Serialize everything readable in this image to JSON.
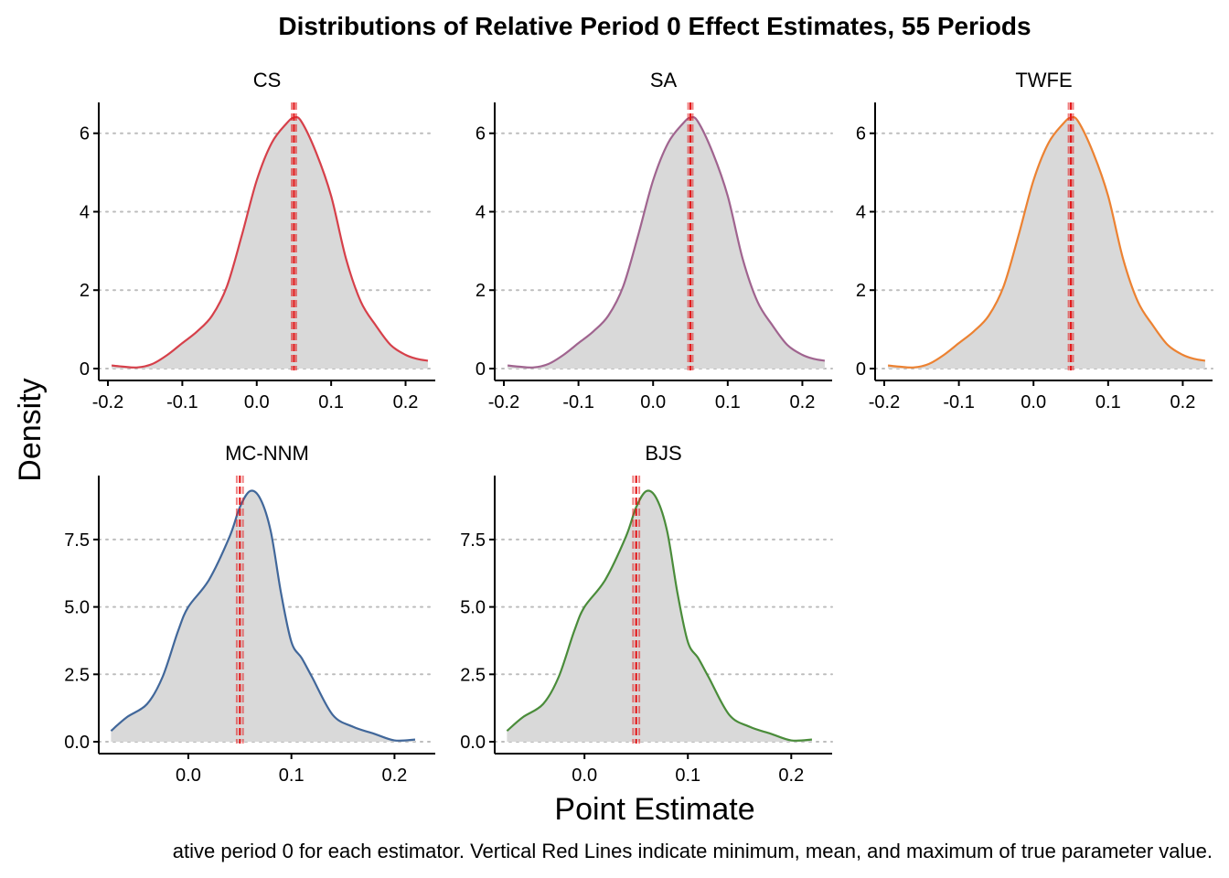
{
  "title": "Distributions of Relative Period 0 Effect Estimates, 55 Periods",
  "xlabel": "Point Estimate",
  "ylabel": "Density",
  "caption": "ative period 0 for each estimator. Vertical Red Lines indicate minimum, mean, and maximum of true parameter value.",
  "colors": {
    "fill": "#d9d9d9",
    "grid": "#bdbdbd",
    "true_line": "#e31a1c"
  },
  "chart_data": [
    {
      "type": "area",
      "panel": "CS",
      "color": "#d6404a",
      "xlim": [
        -0.2,
        0.235
      ],
      "ylim": [
        0,
        6.6
      ],
      "xticks": [
        -0.2,
        -0.1,
        0.0,
        0.1,
        0.2
      ],
      "xtick_labels": [
        "-0.2",
        "-0.1",
        "0.0",
        "0.1",
        "0.2"
      ],
      "yticks": [
        0,
        2,
        4,
        6
      ],
      "ytick_labels": [
        "0",
        "2",
        "4",
        "6"
      ],
      "true_value_lines": [
        0.047,
        0.05,
        0.053
      ],
      "x": [
        -0.195,
        -0.18,
        -0.16,
        -0.14,
        -0.12,
        -0.1,
        -0.08,
        -0.06,
        -0.04,
        -0.02,
        0.0,
        0.02,
        0.04,
        0.05,
        0.06,
        0.08,
        0.1,
        0.12,
        0.14,
        0.16,
        0.18,
        0.2,
        0.215,
        0.23
      ],
      "y": [
        0.08,
        0.05,
        0.03,
        0.12,
        0.35,
        0.65,
        0.95,
        1.35,
        2.1,
        3.4,
        4.8,
        5.75,
        6.25,
        6.4,
        6.3,
        5.5,
        4.4,
        2.8,
        1.7,
        1.1,
        0.6,
        0.35,
        0.25,
        0.2
      ]
    },
    {
      "type": "area",
      "panel": "SA",
      "color": "#a0648f",
      "xlim": [
        -0.2,
        0.235
      ],
      "ylim": [
        0,
        6.6
      ],
      "xticks": [
        -0.2,
        -0.1,
        0.0,
        0.1,
        0.2
      ],
      "xtick_labels": [
        "-0.2",
        "-0.1",
        "0.0",
        "0.1",
        "0.2"
      ],
      "yticks": [
        0,
        2,
        4,
        6
      ],
      "ytick_labels": [
        "0",
        "2",
        "4",
        "6"
      ],
      "true_value_lines": [
        0.047,
        0.05,
        0.053
      ],
      "x": [
        -0.195,
        -0.18,
        -0.16,
        -0.14,
        -0.12,
        -0.1,
        -0.08,
        -0.06,
        -0.04,
        -0.02,
        0.0,
        0.02,
        0.04,
        0.05,
        0.06,
        0.08,
        0.1,
        0.12,
        0.14,
        0.16,
        0.18,
        0.2,
        0.215,
        0.23
      ],
      "y": [
        0.08,
        0.05,
        0.03,
        0.12,
        0.35,
        0.65,
        0.95,
        1.35,
        2.1,
        3.4,
        4.8,
        5.75,
        6.25,
        6.4,
        6.3,
        5.5,
        4.4,
        2.8,
        1.7,
        1.1,
        0.6,
        0.35,
        0.25,
        0.2
      ]
    },
    {
      "type": "area",
      "panel": "TWFE",
      "color": "#ec8232",
      "xlim": [
        -0.2,
        0.235
      ],
      "ylim": [
        0,
        6.6
      ],
      "xticks": [
        -0.2,
        -0.1,
        0.0,
        0.1,
        0.2
      ],
      "xtick_labels": [
        "-0.2",
        "-0.1",
        "0.0",
        "0.1",
        "0.2"
      ],
      "yticks": [
        0,
        2,
        4,
        6
      ],
      "ytick_labels": [
        "0",
        "2",
        "4",
        "6"
      ],
      "true_value_lines": [
        0.047,
        0.05,
        0.053
      ],
      "x": [
        -0.195,
        -0.18,
        -0.16,
        -0.14,
        -0.12,
        -0.1,
        -0.08,
        -0.06,
        -0.04,
        -0.02,
        0.0,
        0.02,
        0.04,
        0.05,
        0.06,
        0.08,
        0.1,
        0.12,
        0.14,
        0.16,
        0.18,
        0.2,
        0.215,
        0.23
      ],
      "y": [
        0.08,
        0.05,
        0.03,
        0.12,
        0.35,
        0.65,
        0.95,
        1.35,
        2.1,
        3.4,
        4.8,
        5.75,
        6.25,
        6.4,
        6.3,
        5.5,
        4.4,
        2.8,
        1.7,
        1.1,
        0.6,
        0.35,
        0.25,
        0.2
      ]
    },
    {
      "type": "area",
      "panel": "MC-NNM",
      "color": "#41679a",
      "xlim": [
        -0.078,
        0.236
      ],
      "ylim": [
        0,
        9.6
      ],
      "xticks": [
        0.0,
        0.1,
        0.2
      ],
      "xtick_labels": [
        "0.0",
        "0.1",
        "0.2"
      ],
      "yticks": [
        0.0,
        2.5,
        5.0,
        7.5
      ],
      "ytick_labels": [
        "0.0",
        "2.5",
        "5.0",
        "7.5"
      ],
      "true_value_lines": [
        0.047,
        0.05,
        0.053
      ],
      "x": [
        -0.075,
        -0.06,
        -0.04,
        -0.025,
        -0.01,
        0.0,
        0.02,
        0.04,
        0.05,
        0.06,
        0.07,
        0.08,
        0.09,
        0.1,
        0.11,
        0.12,
        0.14,
        0.16,
        0.18,
        0.2,
        0.22
      ],
      "y": [
        0.4,
        0.9,
        1.4,
        2.4,
        4.1,
        5.0,
        6.0,
        7.6,
        8.7,
        9.3,
        9.0,
        7.8,
        5.5,
        3.7,
        3.1,
        2.4,
        1.0,
        0.55,
        0.3,
        0.05,
        0.08
      ]
    },
    {
      "type": "area",
      "panel": "BJS",
      "color": "#4a8c3a",
      "xlim": [
        -0.078,
        0.236
      ],
      "ylim": [
        0,
        9.6
      ],
      "xticks": [
        0.0,
        0.1,
        0.2
      ],
      "xtick_labels": [
        "0.0",
        "0.1",
        "0.2"
      ],
      "yticks": [
        0.0,
        2.5,
        5.0,
        7.5
      ],
      "ytick_labels": [
        "0.0",
        "2.5",
        "5.0",
        "7.5"
      ],
      "true_value_lines": [
        0.047,
        0.05,
        0.053
      ],
      "x": [
        -0.075,
        -0.06,
        -0.04,
        -0.025,
        -0.01,
        0.0,
        0.02,
        0.04,
        0.05,
        0.06,
        0.07,
        0.08,
        0.09,
        0.1,
        0.11,
        0.12,
        0.14,
        0.16,
        0.18,
        0.2,
        0.22
      ],
      "y": [
        0.4,
        0.9,
        1.4,
        2.4,
        4.1,
        5.0,
        6.0,
        7.6,
        8.7,
        9.3,
        9.0,
        7.8,
        5.5,
        3.7,
        3.1,
        2.4,
        1.0,
        0.55,
        0.3,
        0.05,
        0.08
      ]
    }
  ]
}
